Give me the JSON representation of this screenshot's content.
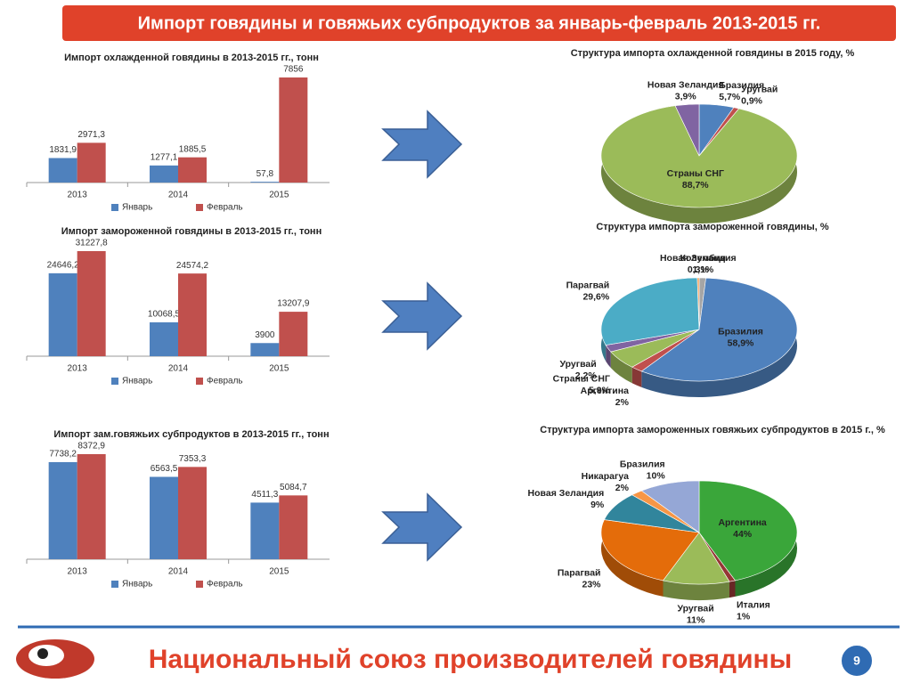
{
  "header": {
    "title": "Импорт говядины и говяжьих субпродуктов за январь-февраль 2013-2015 гг."
  },
  "chart_data": [
    {
      "type": "bar",
      "title": "Импорт охлажденной говядины в 2013-2015 гг., тонн",
      "categories": [
        "2013",
        "2014",
        "2015"
      ],
      "series": [
        {
          "name": "Январь",
          "color": "#4f81bd",
          "values": [
            1831.9,
            1277.1,
            57.8
          ],
          "value_labels": [
            "1831,9",
            "1277,1",
            "57,8"
          ]
        },
        {
          "name": "Февраль",
          "color": "#c0504d",
          "values": [
            2971.3,
            1885.5,
            7856
          ],
          "value_labels": [
            "2971,3",
            "1885,5",
            "7856"
          ]
        }
      ]
    },
    {
      "type": "pie",
      "title": "Структура импорта охлажденной говядины в 2015 году, %",
      "categories": [
        "Бразилия",
        "Уругвай",
        "Страны СНГ",
        "Новая Зеландия"
      ],
      "values": [
        5.7,
        0.9,
        88.7,
        3.9
      ],
      "value_labels": [
        "5,7%",
        "0,9%",
        "88,7%",
        "3,9%"
      ],
      "colors": [
        "#4f81bd",
        "#c0504d",
        "#9bbb59",
        "#8064a2"
      ]
    },
    {
      "type": "bar",
      "title": "Импорт замороженной говядины в 2013-2015 гг., тонн",
      "categories": [
        "2013",
        "2014",
        "2015"
      ],
      "series": [
        {
          "name": "Январь",
          "color": "#4f81bd",
          "values": [
            24646.2,
            10068.5,
            3900
          ],
          "value_labels": [
            "24646,2",
            "10068,5",
            "3900"
          ]
        },
        {
          "name": "Февраль",
          "color": "#c0504d",
          "values": [
            31227.8,
            24574.2,
            13207.9
          ],
          "value_labels": [
            "31227,8",
            "24574,2",
            "13207,9"
          ]
        }
      ]
    },
    {
      "type": "pie",
      "title": "Структура импорта замороженной говядины, %",
      "categories": [
        "Колумбия",
        "Бразилия",
        "Аргентина",
        "Страны СНГ",
        "Уругвай",
        "Парагвай",
        "Новая Зеландия"
      ],
      "values": [
        1.1,
        58.9,
        2,
        5.9,
        2.2,
        29.6,
        0.3
      ],
      "value_labels": [
        "1,1%",
        "58,9%",
        "2%",
        "5,9%",
        "2,2%",
        "29,6%",
        "0,3%"
      ],
      "colors": [
        "#a5a5a5",
        "#4f81bd",
        "#c0504d",
        "#9bbb59",
        "#8064a2",
        "#4bacc6",
        "#f79646"
      ]
    },
    {
      "type": "bar",
      "title": "Импорт зам.говяжьих субпродуктов в 2013-2015 гг., тонн",
      "categories": [
        "2013",
        "2014",
        "2015"
      ],
      "series": [
        {
          "name": "Январь",
          "color": "#4f81bd",
          "values": [
            7738.2,
            6563.5,
            4511.3
          ],
          "value_labels": [
            "7738,2",
            "6563,5",
            "4511,3"
          ]
        },
        {
          "name": "Февраль",
          "color": "#c0504d",
          "values": [
            8372.9,
            7353.3,
            5084.7
          ],
          "value_labels": [
            "8372,9",
            "7353,3",
            "5084,7"
          ]
        }
      ]
    },
    {
      "type": "pie",
      "title": "Структура импорта замороженных говяжьих субпродуктов в 2015 г., %",
      "categories": [
        "Аргентина",
        "Италия",
        "Уругвай",
        "Парагвай",
        "Новая Зеландия",
        "Никарагуа",
        "Бразилия"
      ],
      "values": [
        44,
        1,
        11,
        23,
        9,
        2,
        10
      ],
      "value_labels": [
        "44%",
        "1%",
        "11%",
        "23%",
        "9%",
        "2%",
        "10%"
      ],
      "colors": [
        "#3aa63a",
        "#953735",
        "#9bbb59",
        "#e46c0a",
        "#31859c",
        "#f79646",
        "#95a7d6"
      ]
    }
  ],
  "footer": {
    "text": "Национальный союз производителей говядины",
    "page": 9
  }
}
